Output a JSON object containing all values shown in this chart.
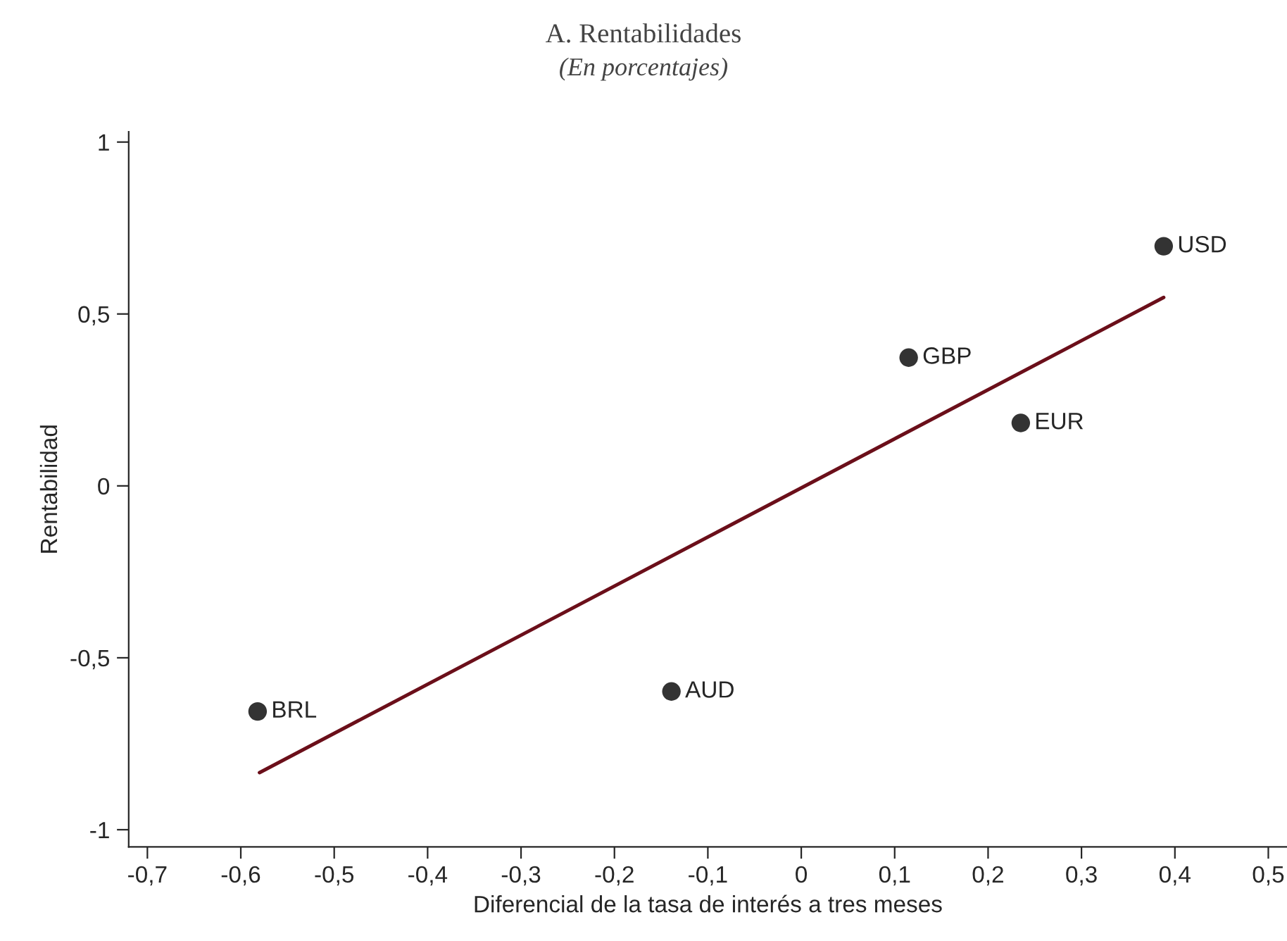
{
  "chart_data": {
    "type": "scatter",
    "title": "A. Rentabilidades",
    "subtitle": "(En porcentajes)",
    "xlabel": "Diferencial de la tasa de interés a tres meses",
    "ylabel": "Rentabilidad",
    "series": [
      {
        "color": "#333333",
        "x": [
          -0.582,
          -0.139,
          0.115,
          0.235,
          0.388
        ],
        "values": [
          -0.656,
          -0.598,
          0.373,
          0.183,
          0.697
        ],
        "marker": "circle"
      },
      {
        "type": "line",
        "color": "#6b0f1a",
        "x": [
          -0.58,
          0.388
        ],
        "values": [
          -0.834,
          0.548
        ],
        "line_style": "solid"
      }
    ],
    "annotations": [
      {
        "text": "BRL",
        "x": -0.582,
        "y": -0.656
      },
      {
        "text": "AUD",
        "x": -0.139,
        "y": -0.598
      },
      {
        "text": "GBP",
        "x": 0.115,
        "y": 0.373
      },
      {
        "text": "EUR",
        "x": 0.235,
        "y": 0.183
      },
      {
        "text": "USD",
        "x": 0.388,
        "y": 0.697
      }
    ],
    "xlim": [
      -0.72,
      0.52
    ],
    "ylim": [
      -1.05,
      1.03
    ],
    "xticks": [
      {
        "value": -0.7,
        "label": "-0,7"
      },
      {
        "value": -0.6,
        "label": "-0,6"
      },
      {
        "value": -0.5,
        "label": "-0,5"
      },
      {
        "value": -0.4,
        "label": "-0,4"
      },
      {
        "value": -0.3,
        "label": "-0,3"
      },
      {
        "value": -0.2,
        "label": "-0,2"
      },
      {
        "value": -0.1,
        "label": "-0,1"
      },
      0,
      {
        "value": 0.1,
        "label": "0,1"
      },
      {
        "value": 0.2,
        "label": "0,2"
      },
      {
        "value": 0.3,
        "label": "0,3"
      },
      {
        "value": 0.4,
        "label": "0,4"
      },
      {
        "value": 0.5,
        "label": "0,5"
      }
    ],
    "yticks": [
      {
        "value": -1,
        "label": "-1"
      },
      {
        "value": -0.5,
        "label": "-0,5"
      },
      0,
      {
        "value": 0.5,
        "label": "0,5"
      },
      1
    ],
    "grid": false,
    "legend": false
  }
}
